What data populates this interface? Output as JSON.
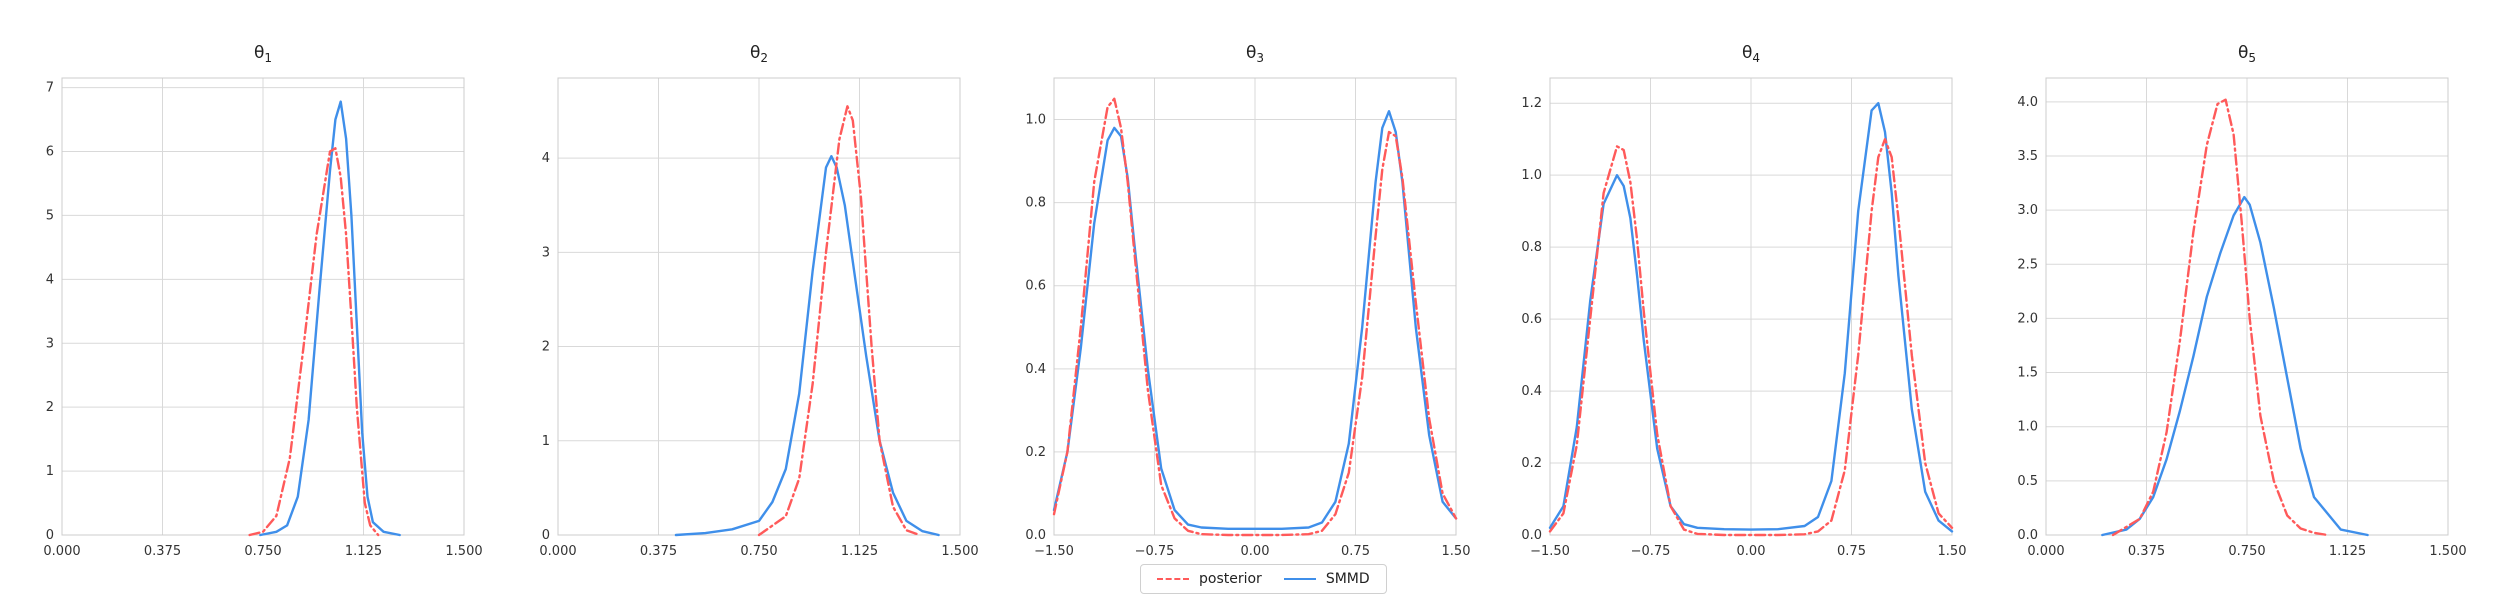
{
  "legend": {
    "posterior_label": "posterior",
    "smmd_label": "SMMD",
    "position": "bottom-center"
  },
  "colors": {
    "posterior": "#ff5a5a",
    "smmd": "#3f8fea",
    "grid": "#d9d9d9",
    "spine": "#cccccc"
  },
  "chart_data": [
    {
      "type": "line",
      "title": "θ1",
      "title_base": "θ",
      "title_sub": "1",
      "xlim": [
        0,
        1.5
      ],
      "ylim": [
        0,
        7.15
      ],
      "xticks": [
        0,
        0.375,
        0.75,
        1.125,
        1.5
      ],
      "xtick_labels": [
        "0.000",
        "0.375",
        "0.750",
        "1.125",
        "1.500"
      ],
      "yticks": [
        0,
        1,
        2,
        3,
        4,
        5,
        6,
        7
      ],
      "ytick_labels": [
        "0",
        "1",
        "2",
        "3",
        "4",
        "5",
        "6",
        "7"
      ],
      "grid": true,
      "series": [
        {
          "name": "posterior",
          "style": "dashdot",
          "x": [
            0.7,
            0.75,
            0.8,
            0.85,
            0.9,
            0.95,
            1.0,
            1.02,
            1.04,
            1.06,
            1.08,
            1.1,
            1.13,
            1.15,
            1.18
          ],
          "y": [
            0,
            0.05,
            0.3,
            1.2,
            2.9,
            4.7,
            6.0,
            6.05,
            5.6,
            4.7,
            3.4,
            2.0,
            0.5,
            0.15,
            0
          ]
        },
        {
          "name": "SMMD",
          "style": "solid",
          "x": [
            0.74,
            0.8,
            0.84,
            0.88,
            0.92,
            0.96,
            1.0,
            1.02,
            1.04,
            1.06,
            1.08,
            1.1,
            1.12,
            1.14,
            1.16,
            1.2,
            1.26
          ],
          "y": [
            0,
            0.05,
            0.15,
            0.6,
            1.8,
            3.8,
            5.7,
            6.5,
            6.78,
            6.2,
            5.0,
            3.3,
            1.6,
            0.6,
            0.2,
            0.05,
            0
          ]
        }
      ]
    },
    {
      "type": "line",
      "title": "θ2",
      "title_base": "θ",
      "title_sub": "2",
      "xlim": [
        0,
        1.5
      ],
      "ylim": [
        0,
        4.85
      ],
      "xticks": [
        0,
        0.375,
        0.75,
        1.125,
        1.5
      ],
      "xtick_labels": [
        "0.000",
        "0.375",
        "0.750",
        "1.125",
        "1.500"
      ],
      "yticks": [
        0,
        1,
        2,
        3,
        4
      ],
      "ytick_labels": [
        "0",
        "1",
        "2",
        "3",
        "4"
      ],
      "grid": true,
      "series": [
        {
          "name": "posterior",
          "style": "dashdot",
          "x": [
            0.75,
            0.85,
            0.9,
            0.95,
            1.0,
            1.05,
            1.08,
            1.1,
            1.13,
            1.17,
            1.2,
            1.25,
            1.3,
            1.35
          ],
          "y": [
            0,
            0.2,
            0.6,
            1.6,
            3.0,
            4.2,
            4.55,
            4.4,
            3.6,
            2.0,
            1.0,
            0.3,
            0.05,
            0
          ]
        },
        {
          "name": "SMMD",
          "style": "solid",
          "x": [
            0.44,
            0.55,
            0.65,
            0.75,
            0.8,
            0.85,
            0.9,
            0.95,
            1.0,
            1.02,
            1.04,
            1.07,
            1.1,
            1.15,
            1.2,
            1.25,
            1.3,
            1.36,
            1.42
          ],
          "y": [
            0,
            0.02,
            0.06,
            0.15,
            0.35,
            0.7,
            1.5,
            2.8,
            3.9,
            4.02,
            3.9,
            3.5,
            2.9,
            1.9,
            1.0,
            0.45,
            0.15,
            0.04,
            0
          ]
        }
      ]
    },
    {
      "type": "line",
      "title": "θ3",
      "title_base": "θ",
      "title_sub": "3",
      "xlim": [
        -1.5,
        1.5
      ],
      "ylim": [
        0,
        1.1
      ],
      "xticks": [
        -1.5,
        -0.75,
        0,
        0.75,
        1.5
      ],
      "xtick_labels": [
        "−1.50",
        "−0.75",
        "0.00",
        "0.75",
        "1.50"
      ],
      "yticks": [
        0,
        0.2,
        0.4,
        0.6,
        0.8,
        1.0
      ],
      "ytick_labels": [
        "0.0",
        "0.2",
        "0.4",
        "0.6",
        "0.8",
        "1.0"
      ],
      "grid": true,
      "series": [
        {
          "name": "posterior",
          "style": "dashdot",
          "x": [
            -1.5,
            -1.4,
            -1.3,
            -1.2,
            -1.1,
            -1.05,
            -1.0,
            -0.95,
            -0.9,
            -0.8,
            -0.7,
            -0.6,
            -0.5,
            -0.4,
            -0.2,
            0,
            0.2,
            0.4,
            0.5,
            0.6,
            0.7,
            0.8,
            0.9,
            0.95,
            1.0,
            1.05,
            1.1,
            1.2,
            1.3,
            1.4,
            1.5
          ],
          "y": [
            0.05,
            0.2,
            0.5,
            0.85,
            1.03,
            1.05,
            0.98,
            0.85,
            0.68,
            0.35,
            0.12,
            0.04,
            0.01,
            0.002,
            0,
            0,
            0,
            0.002,
            0.01,
            0.05,
            0.15,
            0.38,
            0.72,
            0.88,
            0.97,
            0.96,
            0.86,
            0.56,
            0.28,
            0.1,
            0.04
          ]
        },
        {
          "name": "SMMD",
          "style": "solid",
          "x": [
            -1.5,
            -1.4,
            -1.3,
            -1.2,
            -1.1,
            -1.05,
            -1.0,
            -0.95,
            -0.9,
            -0.8,
            -0.7,
            -0.6,
            -0.5,
            -0.4,
            -0.2,
            0,
            0.2,
            0.4,
            0.5,
            0.6,
            0.7,
            0.8,
            0.9,
            0.95,
            1.0,
            1.05,
            1.1,
            1.2,
            1.3,
            1.4,
            1.5
          ],
          "y": [
            0.06,
            0.2,
            0.45,
            0.75,
            0.95,
            0.98,
            0.96,
            0.86,
            0.7,
            0.4,
            0.16,
            0.06,
            0.025,
            0.018,
            0.015,
            0.015,
            0.015,
            0.018,
            0.03,
            0.08,
            0.22,
            0.5,
            0.85,
            0.98,
            1.02,
            0.97,
            0.85,
            0.5,
            0.24,
            0.08,
            0.04
          ]
        }
      ]
    },
    {
      "type": "line",
      "title": "θ4",
      "title_base": "θ",
      "title_sub": "4",
      "xlim": [
        -1.5,
        1.5
      ],
      "ylim": [
        0,
        1.27
      ],
      "xticks": [
        -1.5,
        -0.75,
        0,
        0.75,
        1.5
      ],
      "xtick_labels": [
        "−1.50",
        "−0.75",
        "0.00",
        "0.75",
        "1.50"
      ],
      "yticks": [
        0,
        0.2,
        0.4,
        0.6,
        0.8,
        1.0,
        1.2
      ],
      "ytick_labels": [
        "0.0",
        "0.2",
        "0.4",
        "0.6",
        "0.8",
        "1.0",
        "1.2"
      ],
      "grid": true,
      "series": [
        {
          "name": "posterior",
          "style": "dashdot",
          "x": [
            -1.5,
            -1.4,
            -1.3,
            -1.2,
            -1.1,
            -1.0,
            -0.95,
            -0.9,
            -0.85,
            -0.8,
            -0.7,
            -0.6,
            -0.5,
            -0.4,
            -0.2,
            0,
            0.2,
            0.4,
            0.5,
            0.6,
            0.7,
            0.8,
            0.9,
            0.95,
            1.0,
            1.05,
            1.1,
            1.2,
            1.3,
            1.4,
            1.5
          ],
          "y": [
            0.01,
            0.06,
            0.25,
            0.6,
            0.95,
            1.08,
            1.07,
            0.98,
            0.82,
            0.62,
            0.28,
            0.08,
            0.015,
            0.003,
            0,
            0,
            0,
            0.002,
            0.01,
            0.04,
            0.18,
            0.5,
            0.9,
            1.05,
            1.1,
            1.05,
            0.88,
            0.5,
            0.2,
            0.06,
            0.02
          ]
        },
        {
          "name": "SMMD",
          "style": "solid",
          "x": [
            -1.5,
            -1.4,
            -1.3,
            -1.2,
            -1.1,
            -1.0,
            -0.95,
            -0.9,
            -0.85,
            -0.8,
            -0.7,
            -0.6,
            -0.5,
            -0.4,
            -0.2,
            0,
            0.2,
            0.4,
            0.5,
            0.6,
            0.7,
            0.8,
            0.9,
            0.95,
            1.0,
            1.05,
            1.1,
            1.2,
            1.3,
            1.4,
            1.5
          ],
          "y": [
            0.02,
            0.08,
            0.3,
            0.65,
            0.92,
            1.0,
            0.97,
            0.88,
            0.72,
            0.54,
            0.24,
            0.08,
            0.03,
            0.02,
            0.016,
            0.015,
            0.016,
            0.025,
            0.05,
            0.15,
            0.45,
            0.9,
            1.18,
            1.2,
            1.12,
            0.95,
            0.72,
            0.35,
            0.12,
            0.04,
            0.01
          ]
        }
      ]
    },
    {
      "type": "line",
      "title": "θ5",
      "title_base": "θ",
      "title_sub": "5",
      "xlim": [
        0,
        1.5
      ],
      "ylim": [
        0,
        4.22
      ],
      "xticks": [
        0,
        0.375,
        0.75,
        1.125,
        1.5
      ],
      "xtick_labels": [
        "0.000",
        "0.375",
        "0.750",
        "1.125",
        "1.500"
      ],
      "yticks": [
        0,
        0.5,
        1.0,
        1.5,
        2.0,
        2.5,
        3.0,
        3.5,
        4.0
      ],
      "ytick_labels": [
        "0.0",
        "0.5",
        "1.0",
        "1.5",
        "2.0",
        "2.5",
        "3.0",
        "3.5",
        "4.0"
      ],
      "grid": true,
      "series": [
        {
          "name": "posterior",
          "style": "dashdot",
          "x": [
            0.25,
            0.35,
            0.4,
            0.45,
            0.5,
            0.55,
            0.6,
            0.64,
            0.67,
            0.7,
            0.73,
            0.76,
            0.8,
            0.85,
            0.9,
            0.95,
            1.0,
            1.05
          ],
          "y": [
            0,
            0.15,
            0.4,
            0.95,
            1.8,
            2.8,
            3.6,
            3.98,
            4.02,
            3.7,
            2.9,
            2.0,
            1.1,
            0.5,
            0.18,
            0.06,
            0.02,
            0
          ]
        },
        {
          "name": "SMMD",
          "style": "solid",
          "x": [
            0.21,
            0.3,
            0.35,
            0.4,
            0.45,
            0.5,
            0.55,
            0.6,
            0.65,
            0.7,
            0.74,
            0.76,
            0.8,
            0.85,
            0.9,
            0.95,
            1.0,
            1.1,
            1.2
          ],
          "y": [
            0,
            0.05,
            0.15,
            0.35,
            0.7,
            1.15,
            1.65,
            2.2,
            2.6,
            2.95,
            3.12,
            3.05,
            2.7,
            2.1,
            1.45,
            0.8,
            0.35,
            0.05,
            0
          ]
        }
      ]
    }
  ]
}
